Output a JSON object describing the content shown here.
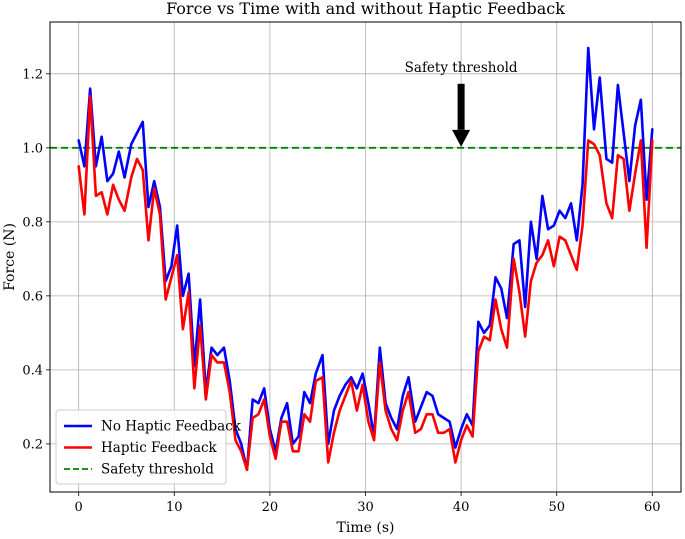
{
  "chart_data": {
    "type": "line",
    "title": "Force vs Time with and without Haptic Feedback",
    "xlabel": "Time (s)",
    "ylabel": "Force (N)",
    "xlim": [
      -3,
      63
    ],
    "ylim": [
      0.07,
      1.34
    ],
    "xticks": [
      0,
      10,
      20,
      30,
      40,
      50,
      60
    ],
    "yticks": [
      0.2,
      0.4,
      0.6,
      0.8,
      1.0,
      1.2
    ],
    "ytick_labels": [
      "0.2",
      "0.4",
      "0.6",
      "0.8",
      "1.0",
      "1.2"
    ],
    "grid": true,
    "legend_position": "lower-left",
    "x": [
      0.0,
      0.6,
      1.2,
      1.8,
      2.4,
      3.0,
      3.6,
      4.2,
      4.8,
      5.5,
      6.1,
      6.7,
      7.3,
      7.9,
      8.5,
      9.1,
      9.7,
      10.3,
      10.9,
      11.5,
      12.1,
      12.7,
      13.3,
      13.9,
      14.5,
      15.2,
      15.8,
      16.4,
      17.0,
      17.6,
      18.2,
      18.8,
      19.4,
      20.0,
      20.6,
      21.2,
      21.8,
      22.4,
      23.0,
      23.6,
      24.2,
      24.8,
      25.5,
      26.1,
      26.7,
      27.3,
      27.9,
      28.5,
      29.1,
      29.7,
      30.3,
      30.9,
      31.5,
      32.1,
      32.7,
      33.3,
      33.9,
      34.5,
      35.2,
      35.8,
      36.4,
      37.0,
      37.6,
      38.2,
      38.8,
      39.4,
      40.0,
      40.6,
      41.2,
      41.8,
      42.4,
      43.0,
      43.6,
      44.2,
      44.8,
      45.5,
      46.1,
      46.7,
      47.3,
      47.9,
      48.5,
      49.1,
      49.7,
      50.3,
      50.9,
      51.5,
      52.1,
      52.7,
      53.3,
      53.9,
      54.5,
      55.2,
      55.8,
      56.4,
      57.0,
      57.6,
      58.2,
      58.8,
      59.4,
      60.0
    ],
    "series": [
      {
        "name": "No Haptic Feedback",
        "color": "#0000ff",
        "values": [
          1.02,
          0.95,
          1.16,
          0.95,
          1.03,
          0.91,
          0.93,
          0.99,
          0.92,
          1.01,
          1.04,
          1.07,
          0.84,
          0.91,
          0.84,
          0.64,
          0.68,
          0.79,
          0.6,
          0.66,
          0.41,
          0.59,
          0.34,
          0.46,
          0.44,
          0.46,
          0.37,
          0.24,
          0.2,
          0.13,
          0.32,
          0.31,
          0.35,
          0.24,
          0.18,
          0.27,
          0.31,
          0.2,
          0.22,
          0.34,
          0.31,
          0.39,
          0.44,
          0.2,
          0.29,
          0.33,
          0.36,
          0.38,
          0.35,
          0.39,
          0.31,
          0.22,
          0.46,
          0.31,
          0.27,
          0.24,
          0.33,
          0.38,
          0.26,
          0.3,
          0.34,
          0.33,
          0.28,
          0.27,
          0.26,
          0.19,
          0.24,
          0.28,
          0.25,
          0.53,
          0.5,
          0.52,
          0.65,
          0.62,
          0.54,
          0.74,
          0.75,
          0.57,
          0.8,
          0.7,
          0.87,
          0.78,
          0.79,
          0.83,
          0.81,
          0.85,
          0.75,
          0.9,
          1.27,
          1.05,
          1.19,
          0.97,
          0.96,
          1.17,
          1.04,
          0.91,
          1.06,
          1.13,
          0.86,
          1.05
        ]
      },
      {
        "name": "Haptic Feedback",
        "color": "#ff0000",
        "values": [
          0.95,
          0.82,
          1.14,
          0.87,
          0.88,
          0.82,
          0.9,
          0.86,
          0.83,
          0.92,
          0.97,
          0.94,
          0.75,
          0.89,
          0.82,
          0.59,
          0.65,
          0.71,
          0.51,
          0.61,
          0.35,
          0.52,
          0.32,
          0.44,
          0.42,
          0.42,
          0.34,
          0.21,
          0.18,
          0.13,
          0.27,
          0.28,
          0.32,
          0.22,
          0.16,
          0.26,
          0.26,
          0.18,
          0.18,
          0.28,
          0.26,
          0.37,
          0.38,
          0.15,
          0.23,
          0.29,
          0.33,
          0.37,
          0.29,
          0.36,
          0.26,
          0.21,
          0.42,
          0.29,
          0.24,
          0.21,
          0.29,
          0.34,
          0.23,
          0.24,
          0.28,
          0.28,
          0.23,
          0.23,
          0.24,
          0.15,
          0.21,
          0.25,
          0.22,
          0.45,
          0.49,
          0.48,
          0.59,
          0.51,
          0.46,
          0.7,
          0.61,
          0.49,
          0.64,
          0.69,
          0.71,
          0.75,
          0.68,
          0.76,
          0.75,
          0.71,
          0.67,
          0.79,
          1.02,
          1.01,
          0.98,
          0.85,
          0.81,
          0.98,
          0.97,
          0.83,
          0.93,
          1.02,
          0.73,
          1.02
        ]
      }
    ],
    "threshold": {
      "name": "Safety threshold",
      "value": 1.0,
      "color": "#008000",
      "style": "dashed"
    },
    "annotation": {
      "text": "Safety threshold",
      "x": 40,
      "y": 1.0,
      "text_y": 1.2
    }
  }
}
